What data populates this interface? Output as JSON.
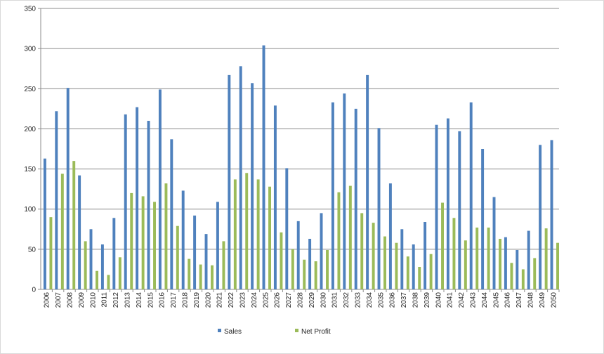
{
  "chart_data": {
    "type": "bar",
    "categories": [
      "2006",
      "2007",
      "2008",
      "2009",
      "2010",
      "2011",
      "2012",
      "2013",
      "2014",
      "2015",
      "2016",
      "2017",
      "2018",
      "2019",
      "2020",
      "2021",
      "2022",
      "2023",
      "2024",
      "2025",
      "2026",
      "2027",
      "2028",
      "2029",
      "2030",
      "2031",
      "2032",
      "2033",
      "2034",
      "2035",
      "2036",
      "2037",
      "2038",
      "2039",
      "2040",
      "2041",
      "2042",
      "2043",
      "2044",
      "2045",
      "2046",
      "2047",
      "2048",
      "2049",
      "2050"
    ],
    "series": [
      {
        "name": "Sales",
        "color": "#4f81bd",
        "values": [
          163,
          222,
          251,
          142,
          75,
          56,
          89,
          218,
          227,
          210,
          249,
          187,
          123,
          92,
          69,
          109,
          267,
          278,
          257,
          304,
          229,
          151,
          85,
          63,
          95,
          233,
          244,
          225,
          267,
          201,
          132,
          75,
          56,
          84,
          205,
          213,
          197,
          233,
          175,
          115,
          65,
          49,
          73,
          180,
          186
        ]
      },
      {
        "name": "Net Profit",
        "color": "#9bbb59",
        "values": [
          90,
          144,
          160,
          60,
          23,
          18,
          40,
          120,
          116,
          109,
          132,
          79,
          38,
          31,
          30,
          60,
          137,
          145,
          137,
          128,
          71,
          50,
          37,
          35,
          49,
          121,
          129,
          95,
          83,
          66,
          58,
          41,
          28,
          44,
          108,
          89,
          61,
          77,
          77,
          63,
          33,
          25,
          39,
          76,
          58
        ]
      }
    ],
    "title": "",
    "xlabel": "",
    "ylabel": "",
    "ylim": [
      0,
      350
    ],
    "yticks": [
      "0",
      "50",
      "100",
      "150",
      "200",
      "250",
      "300",
      "350"
    ],
    "grid": true,
    "legend": "bottom"
  }
}
